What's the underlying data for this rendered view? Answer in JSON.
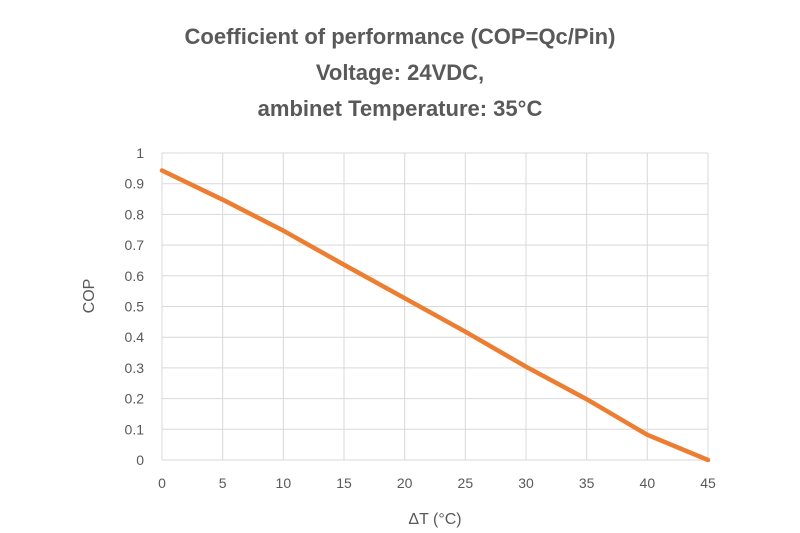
{
  "chart_data": {
    "type": "line",
    "title": [
      "Coefficient of performance (COP=Qc/Pin)",
      "Voltage: 24VDC,",
      "ambinet Temperature: 35°C"
    ],
    "xlabel": "ΔT (°C)",
    "ylabel": "COP",
    "xlim": [
      0,
      45
    ],
    "ylim": [
      0,
      1
    ],
    "xticks": [
      "0",
      "5",
      "10",
      "15",
      "20",
      "25",
      "30",
      "35",
      "40",
      "45"
    ],
    "yticks": [
      "0",
      "0.1",
      "0.2",
      "0.3",
      "0.4",
      "0.5",
      "0.6",
      "0.7",
      "0.8",
      "0.9",
      "1"
    ],
    "grid": true,
    "series": [
      {
        "name": "COP",
        "color": "#ED7D31",
        "x": [
          0,
          5,
          10,
          15,
          20,
          25,
          30,
          35,
          40,
          45
        ],
        "y": [
          0.943,
          0.848,
          0.747,
          0.636,
          0.527,
          0.418,
          0.304,
          0.198,
          0.082,
          0.0
        ]
      }
    ]
  }
}
